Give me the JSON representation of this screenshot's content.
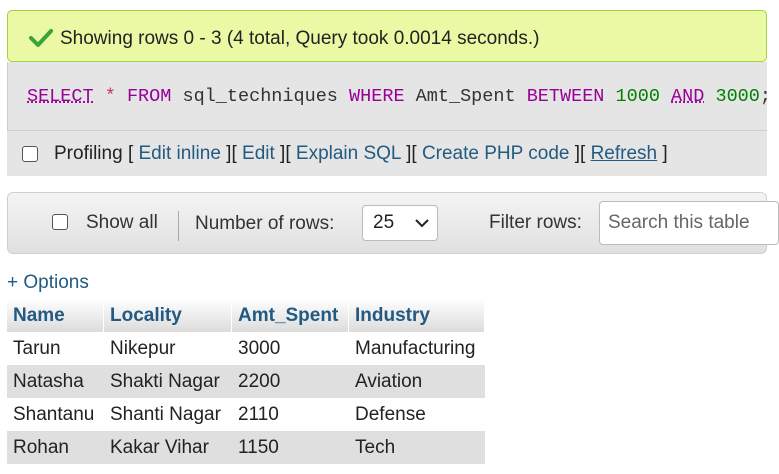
{
  "success": {
    "icon": "check-icon",
    "message": "Showing rows 0 - 3 (4 total, Query took 0.0014 seconds.)"
  },
  "sql": {
    "select": "SELECT",
    "star": "*",
    "from": "FROM",
    "table": "sql_techniques",
    "where": "WHERE",
    "column": "Amt_Spent",
    "between": "BETWEEN",
    "low": "1000",
    "and": "AND",
    "high": "3000",
    "end": ";"
  },
  "profiling": {
    "label": "Profiling",
    "open": "[",
    "close": "]",
    "links": [
      "Edit inline",
      "Edit",
      "Explain SQL",
      "Create PHP code",
      "Refresh"
    ]
  },
  "nav": {
    "show_all": "Show all",
    "rows_label": "Number of rows:",
    "rows_value": "25",
    "filter_label": "Filter rows:",
    "filter_placeholder": "Search this table"
  },
  "options_link": "+ Options",
  "table": {
    "columns": [
      "Name",
      "Locality",
      "Amt_Spent",
      "Industry"
    ],
    "rows": [
      [
        "Tarun",
        "Nikepur",
        "3000",
        "Manufacturing"
      ],
      [
        "Natasha",
        "Shakti Nagar",
        "2200",
        "Aviation"
      ],
      [
        "Shantanu",
        "Shanti Nagar",
        "2110",
        "Defense"
      ],
      [
        "Rohan",
        "Kakar Vihar",
        "1150",
        "Tech"
      ]
    ]
  },
  "colors": {
    "success_bg": "#ebf8a4",
    "link": "#235a81",
    "keyword": "#990099",
    "number": "#008000"
  }
}
